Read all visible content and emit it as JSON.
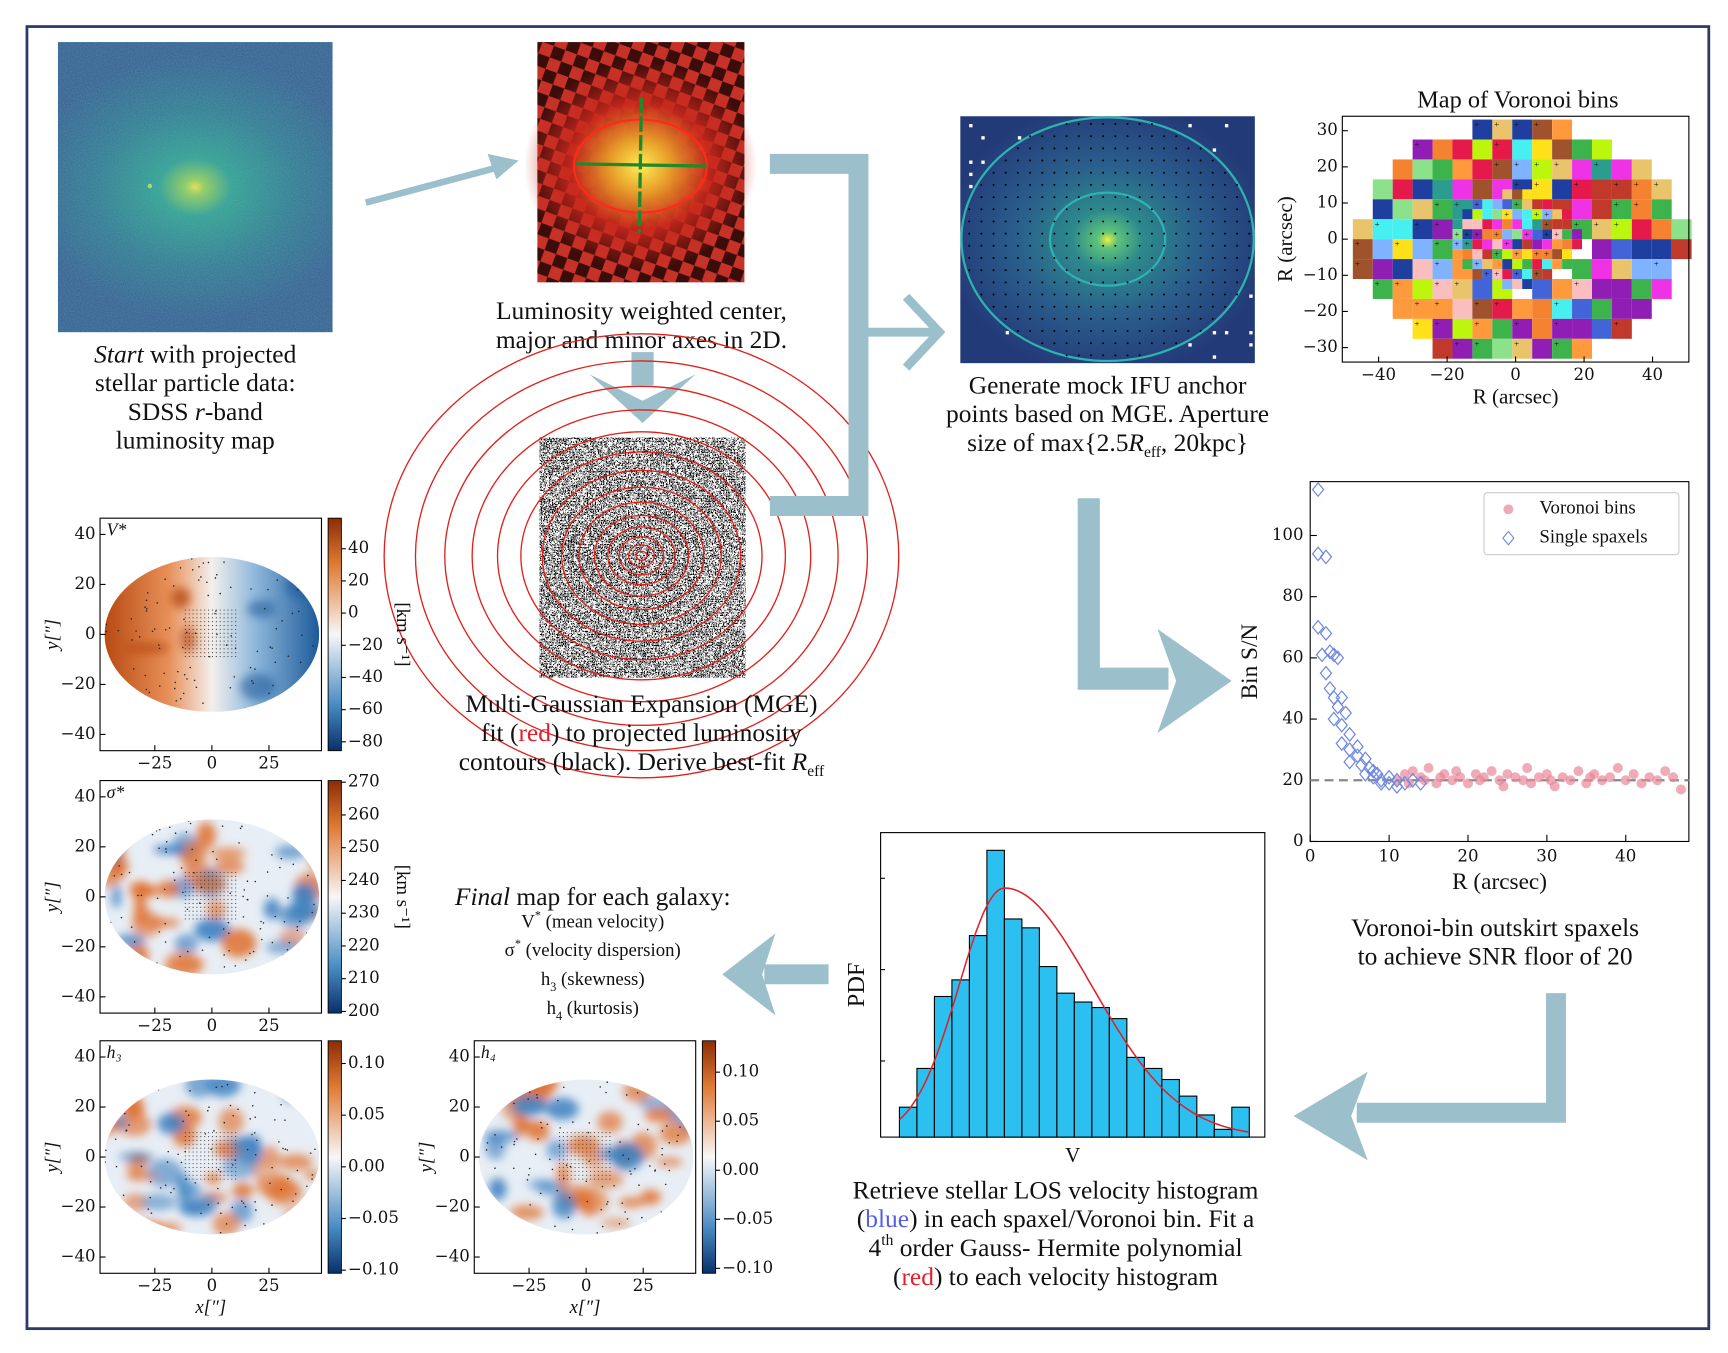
{
  "start": {
    "caption": [
      [
        "Start",
        " with projected"
      ],
      [
        "stellar particle data:"
      ],
      [
        "SDSS ",
        "r",
        "-band"
      ],
      [
        "luminosity map"
      ]
    ]
  },
  "center": {
    "caption": [
      [
        "Luminosity weighted center,"
      ],
      [
        "major and minor axes in 2D."
      ]
    ]
  },
  "mge": {
    "caption": [
      [
        "Multi-Gaussian Expansion (MGE)"
      ],
      [
        "fit (",
        "red",
        ") to projected luminosity"
      ],
      [
        "contours (black). Derive best-fit ",
        "R",
        "eff"
      ]
    ]
  },
  "ifu": {
    "caption": [
      [
        "Generate mock IFU anchor"
      ],
      [
        "points based on MGE. Aperture"
      ],
      [
        "size of max{2.5",
        "R",
        "eff",
        ", 20kpc}"
      ]
    ]
  },
  "voronoi_map": {
    "title": "Map of Voronoi bins",
    "xlabel": "R (arcsec)",
    "ylabel": "R (arcsec)",
    "xlim": [
      -50.6,
      50.6
    ],
    "ylim": [
      -34,
      34
    ],
    "xticks": [
      {
        "value": -40,
        "label": "−40"
      },
      {
        "value": -20,
        "label": "−20"
      },
      0,
      20,
      40
    ],
    "yticks": [
      30,
      20,
      10,
      0,
      {
        "value": -10,
        "label": "−10"
      },
      {
        "value": -20,
        "label": "−20"
      },
      {
        "value": -30,
        "label": "−30"
      }
    ]
  },
  "snr_plot": {
    "type": "scatter",
    "xlabel": "R (arcsec)",
    "ylabel": "Bin S/N",
    "xlim": [
      0,
      48
    ],
    "ylim": [
      0,
      117.6
    ],
    "xticks": [
      0,
      10,
      20,
      30,
      40
    ],
    "yticks": [
      0,
      20,
      40,
      60,
      80,
      100
    ],
    "threshold": 20,
    "legend": "upper right",
    "series": [
      {
        "name": "Voronoi bins",
        "color": "#e8879a",
        "marker": "circle",
        "x": [
          11,
          12,
          12.5,
          13,
          14,
          14.5,
          15,
          16,
          16.5,
          17,
          18,
          18.5,
          19,
          20,
          21,
          21.5,
          22,
          23,
          24,
          24.5,
          25,
          26,
          27,
          27.5,
          28,
          29,
          30,
          30.5,
          31,
          32,
          33,
          34,
          35,
          35.5,
          36,
          37,
          38,
          39,
          40,
          41,
          42,
          43,
          44,
          45,
          46,
          47
        ],
        "values": [
          20,
          22,
          19,
          23,
          21,
          20,
          24,
          19,
          21,
          22,
          20,
          23,
          21,
          19,
          22,
          20,
          21,
          23,
          20,
          18,
          22,
          21,
          20,
          24,
          19,
          21,
          22,
          20,
          18,
          21,
          20,
          23,
          19,
          21,
          22,
          20,
          21,
          24,
          20,
          22,
          19,
          21,
          20,
          23,
          21,
          17
        ]
      },
      {
        "name": "Single spaxels",
        "color": "#6f88e0",
        "marker": "diamond",
        "x": [
          1,
          1,
          2,
          1,
          2,
          1.5,
          2.5,
          3,
          3.5,
          2,
          2.5,
          3,
          4,
          3,
          4,
          3.5,
          4.5,
          5,
          4,
          5,
          6,
          5,
          6,
          6.5,
          7,
          7,
          7.5,
          8,
          8,
          8.5,
          9,
          9,
          10,
          10,
          11,
          11,
          12,
          13,
          14
        ],
        "values": [
          115,
          94,
          93,
          70,
          68,
          61,
          62,
          61,
          60,
          55,
          50,
          47,
          47,
          40,
          38,
          44,
          42,
          35,
          32,
          30,
          31,
          26,
          28,
          25,
          27,
          22,
          24,
          23,
          21,
          22,
          20,
          19,
          21,
          19,
          20,
          18,
          19,
          20,
          19
        ]
      }
    ],
    "caption": [
      [
        "Voronoi-bin outskirt spaxels"
      ],
      [
        "to achieve SNR floor of 20"
      ]
    ]
  },
  "histogram": {
    "type": "histogram",
    "xlabel": "V",
    "ylabel": "PDF",
    "color": "#2bc0ef",
    "ylim": [
      0,
      275
    ],
    "values": [
      27,
      62,
      127,
      142,
      182,
      259,
      197,
      189,
      154,
      130,
      122,
      117,
      107,
      72,
      62,
      52,
      37,
      20,
      7,
      27
    ],
    "caption": [
      [
        "Retrieve stellar LOS velocity histogram"
      ],
      [
        "(",
        "blue",
        ") in each spaxel/Voronoi bin. Fit a"
      ],
      [
        "4",
        "th",
        " order Gauss- Hermite polynomial"
      ],
      [
        "(",
        "red",
        ") to each velocity histogram"
      ]
    ]
  },
  "final": {
    "caption": [
      [
        "Final",
        " map for each galaxy:"
      ],
      [
        "V",
        "*",
        " (mean velocity)"
      ],
      [
        "σ",
        "*",
        " (velocity dispersion)"
      ],
      [
        "h",
        "3",
        " (skewness)"
      ],
      [
        "h",
        "4",
        " (kurtosis)"
      ]
    ]
  },
  "maps": [
    {
      "label": "V*",
      "ylabel": "y[″]",
      "xlim": [
        -49,
        48
      ],
      "ylim": [
        -46.5,
        46.5
      ],
      "xticks": [
        {
          "value": -25,
          "label": "−25"
        },
        0,
        25
      ],
      "yticks": [
        40,
        20,
        0,
        {
          "value": -20,
          "label": "−20"
        },
        {
          "value": -40,
          "label": "−40"
        }
      ],
      "cbar_lim": [
        -85.5,
        59
      ],
      "cbar_label": "[km s⁻¹]",
      "cbar_ticks": [
        40,
        20,
        0,
        {
          "value": -20,
          "label": "−20"
        },
        {
          "value": -40,
          "label": "−40"
        },
        {
          "value": -60,
          "label": "−60"
        },
        {
          "value": -80,
          "label": "−80"
        }
      ]
    },
    {
      "label": "σ*",
      "ylabel": "y[″]",
      "xlim": [
        -49,
        48
      ],
      "ylim": [
        -46.5,
        46.5
      ],
      "xticks": [
        {
          "value": -25,
          "label": "−25"
        },
        0,
        25
      ],
      "yticks": [
        40,
        20,
        0,
        {
          "value": -20,
          "label": "−20"
        },
        {
          "value": -40,
          "label": "−40"
        }
      ],
      "cbar_lim": [
        199.5,
        270.5
      ],
      "cbar_label": "[km s⁻¹]",
      "cbar_ticks": [
        270,
        260,
        250,
        240,
        230,
        220,
        210,
        200
      ]
    },
    {
      "label": "h₃",
      "ylabel": "y[″]",
      "xlabel": "x[″]",
      "xlim": [
        -49,
        48
      ],
      "ylim": [
        -46.5,
        46.5
      ],
      "xticks": [
        {
          "value": -25,
          "label": "−25"
        },
        0,
        25
      ],
      "yticks": [
        40,
        20,
        0,
        {
          "value": -20,
          "label": "−20"
        },
        {
          "value": -40,
          "label": "−40"
        }
      ],
      "cbar_lim": [
        -0.103,
        0.122
      ],
      "cbar_ticks": [
        {
          "value": 0.1,
          "label": "0.10"
        },
        0.05,
        {
          "value": 0,
          "label": "0.00"
        },
        {
          "value": -0.05,
          "label": "−0.05"
        },
        {
          "value": -0.1,
          "label": "−0.10"
        }
      ]
    },
    {
      "label": "h₄",
      "ylabel": "y[″]",
      "xlabel": "x[″]",
      "xlim": [
        -49,
        48
      ],
      "ylim": [
        -46.5,
        46.5
      ],
      "xticks": [
        {
          "value": -25,
          "label": "−25"
        },
        0,
        25
      ],
      "yticks": [
        40,
        20,
        0,
        {
          "value": -20,
          "label": "−20"
        },
        {
          "value": -40,
          "label": "−40"
        }
      ],
      "cbar_lim": [
        -0.105,
        0.132
      ],
      "cbar_ticks": [
        {
          "value": 0.1,
          "label": "0.10"
        },
        0.05,
        {
          "value": 0,
          "label": "0.00"
        },
        {
          "value": -0.05,
          "label": "−0.05"
        },
        {
          "value": -0.1,
          "label": "−0.10"
        }
      ]
    }
  ]
}
